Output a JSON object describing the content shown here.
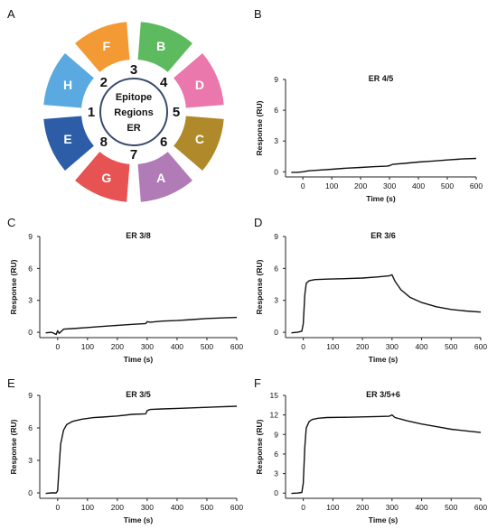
{
  "panel_labels": [
    "A",
    "B",
    "C",
    "D",
    "E",
    "F"
  ],
  "wheel": {
    "center_lines": [
      "Epitope",
      "Regions",
      "ER"
    ],
    "segments": [
      {
        "letter": "H",
        "color": "#5AA9E0",
        "number": "1"
      },
      {
        "letter": "F",
        "color": "#F39A35",
        "number": "2"
      },
      {
        "letter": "B",
        "color": "#5DBA5E",
        "number": "3"
      },
      {
        "letter": "D",
        "color": "#EA78AC",
        "number": "4"
      },
      {
        "letter": "C",
        "color": "#B08A2A",
        "number": "5"
      },
      {
        "letter": "A",
        "color": "#B07BB6",
        "number": "6"
      },
      {
        "letter": "G",
        "color": "#E75352",
        "number": "7"
      },
      {
        "letter": "E",
        "color": "#2C5DA6",
        "number": "8"
      }
    ]
  },
  "chart_data": [
    {
      "type": "line",
      "panel": "B",
      "title": "ER 4/5",
      "xlabel": "Time (s)",
      "ylabel": "Response (RU)",
      "xlim": [
        -60,
        600
      ],
      "ylim": [
        -0.5,
        9
      ],
      "xticks": [
        0,
        100,
        200,
        300,
        400,
        500,
        600
      ],
      "yticks": [
        0,
        3,
        6,
        9
      ],
      "series": [
        {
          "x": [
            -40,
            -20,
            0,
            20,
            50,
            100,
            150,
            200,
            250,
            290,
            300,
            310,
            350,
            400,
            450,
            500,
            550,
            600
          ],
          "values": [
            -0.05,
            -0.05,
            0.0,
            0.1,
            0.15,
            0.25,
            0.35,
            0.42,
            0.5,
            0.55,
            0.6,
            0.72,
            0.82,
            0.95,
            1.05,
            1.15,
            1.25,
            1.3
          ]
        }
      ]
    },
    {
      "type": "line",
      "panel": "C",
      "title": "ER 3/8",
      "xlabel": "Time (s)",
      "ylabel": "Response (RU)",
      "xlim": [
        -60,
        600
      ],
      "ylim": [
        -0.5,
        9
      ],
      "xticks": [
        0,
        100,
        200,
        300,
        400,
        500,
        600
      ],
      "yticks": [
        0,
        3,
        6,
        9
      ],
      "series": [
        {
          "x": [
            -40,
            -20,
            -5,
            0,
            5,
            20,
            50,
            100,
            150,
            200,
            250,
            295,
            300,
            310,
            350,
            400,
            450,
            500,
            550,
            600
          ],
          "values": [
            -0.05,
            0.0,
            -0.2,
            0.15,
            -0.1,
            0.3,
            0.35,
            0.45,
            0.55,
            0.65,
            0.75,
            0.82,
            1.0,
            0.95,
            1.05,
            1.1,
            1.2,
            1.3,
            1.35,
            1.4
          ]
        }
      ]
    },
    {
      "type": "line",
      "panel": "D",
      "title": "ER 3/6",
      "xlabel": "Time (s)",
      "ylabel": "Response (RU)",
      "xlim": [
        -60,
        600
      ],
      "ylim": [
        -0.5,
        9
      ],
      "xticks": [
        0,
        100,
        200,
        300,
        400,
        500,
        600
      ],
      "yticks": [
        0,
        3,
        6,
        9
      ],
      "series": [
        {
          "x": [
            -40,
            -20,
            -5,
            0,
            5,
            10,
            20,
            40,
            80,
            150,
            200,
            250,
            290,
            300,
            310,
            330,
            360,
            400,
            450,
            500,
            550,
            600
          ],
          "values": [
            -0.05,
            0.0,
            0.1,
            0.8,
            3.5,
            4.6,
            4.85,
            4.95,
            5.0,
            5.05,
            5.1,
            5.2,
            5.3,
            5.4,
            4.8,
            4.0,
            3.3,
            2.8,
            2.4,
            2.15,
            2.0,
            1.9
          ]
        }
      ]
    },
    {
      "type": "line",
      "panel": "E",
      "title": "ER 3/5",
      "xlabel": "Time (s)",
      "ylabel": "Response (RU)",
      "xlim": [
        -60,
        600
      ],
      "ylim": [
        -0.5,
        9
      ],
      "xticks": [
        0,
        100,
        200,
        300,
        400,
        500,
        600
      ],
      "yticks": [
        0,
        3,
        6,
        9
      ],
      "series": [
        {
          "x": [
            -40,
            -20,
            -5,
            0,
            5,
            10,
            20,
            30,
            50,
            80,
            120,
            150,
            200,
            250,
            295,
            300,
            310,
            350,
            400,
            450,
            500,
            550,
            600
          ],
          "values": [
            -0.05,
            0.0,
            0.0,
            0.2,
            2.5,
            4.5,
            5.8,
            6.3,
            6.6,
            6.8,
            6.95,
            7.0,
            7.1,
            7.25,
            7.3,
            7.6,
            7.7,
            7.75,
            7.8,
            7.85,
            7.9,
            7.95,
            8.0
          ]
        }
      ]
    },
    {
      "type": "line",
      "panel": "F",
      "title": "ER 3/5+6",
      "xlabel": "Time (s)",
      "ylabel": "Response (RU)",
      "xlim": [
        -60,
        600
      ],
      "ylim": [
        -0.8,
        15
      ],
      "xticks": [
        0,
        100,
        200,
        300,
        400,
        500,
        600
      ],
      "yticks": [
        0,
        3,
        6,
        9,
        12,
        15
      ],
      "series": [
        {
          "x": [
            -40,
            -20,
            -5,
            0,
            5,
            10,
            20,
            30,
            50,
            80,
            150,
            200,
            250,
            290,
            300,
            310,
            350,
            400,
            450,
            500,
            550,
            600
          ],
          "values": [
            -0.05,
            0.0,
            0.1,
            1.5,
            7.0,
            10.0,
            11.0,
            11.3,
            11.5,
            11.6,
            11.65,
            11.7,
            11.75,
            11.8,
            12.0,
            11.6,
            11.1,
            10.6,
            10.2,
            9.8,
            9.55,
            9.3
          ]
        }
      ]
    }
  ]
}
